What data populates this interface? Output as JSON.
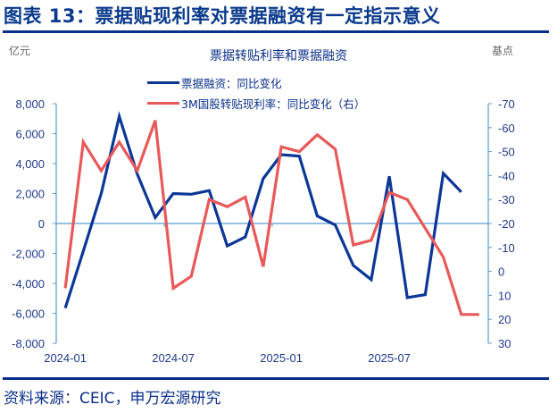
{
  "figure": {
    "title": "图表 13：票据贴现利率对票据融资有一定指示意义",
    "source": "资料来源：CEIC，申万宏源研究"
  },
  "chart": {
    "title": "票据转贴利率和票据融资",
    "left_unit": "亿元",
    "right_unit": "基点",
    "legend": [
      {
        "label": "票据融资：同比变化",
        "color": "#0b3797"
      },
      {
        "label": "3M国股转贴现利率：同比变化（右）",
        "color": "#e8595a"
      }
    ],
    "left_ticks": [
      "8,000",
      "6,000",
      "4,000",
      "2,000",
      "0",
      "-2,000",
      "-4,000",
      "-6,000",
      "-8,000"
    ],
    "right_ticks": [
      "-70",
      "-60",
      "-50",
      "-40",
      "-30",
      "-20",
      "-10",
      "0",
      "10",
      "20",
      "30"
    ],
    "x_labels": [
      "2024-01",
      "2024-07",
      "2025-01",
      "2025-07"
    ]
  },
  "chart_data": {
    "type": "line",
    "title": "票据转贴利率和票据融资",
    "xlabel": "",
    "ylabel": "亿元",
    "ylabel_right": "基点",
    "ylim": [
      -8000,
      8000
    ],
    "ylim_right": [
      30,
      -70
    ],
    "right_axis_inverted": true,
    "legend_position": "top-center",
    "grid": false,
    "x": [
      "2024-01",
      "2024-02",
      "2024-03",
      "2024-04",
      "2024-05",
      "2024-06",
      "2024-07",
      "2024-08",
      "2024-09",
      "2024-10",
      "2024-11",
      "2024-12",
      "2025-01",
      "2025-02",
      "2025-03",
      "2025-04",
      "2025-05",
      "2025-06",
      "2025-07",
      "2025-08",
      "2025-09",
      "2025-10",
      "2025-11",
      "2025-12"
    ],
    "x_tick_labels": [
      "2024-01",
      "2024-07",
      "2025-01",
      "2025-07"
    ],
    "series": [
      {
        "name": "票据融资：同比变化",
        "axis": "left",
        "color": "#0b3797",
        "values": [
          -5650,
          -1850,
          2000,
          7150,
          3300,
          400,
          2000,
          1950,
          2200,
          -1500,
          -900,
          3000,
          4600,
          4500,
          500,
          -100,
          -2800,
          -3750,
          3150,
          -4950,
          -4750,
          3350,
          2100,
          null
        ]
      },
      {
        "name": "3M国股转贴现利率：同比变化（右）",
        "axis": "right",
        "color": "#e8595a",
        "values": [
          7,
          -54,
          -42,
          -54,
          -42,
          -63,
          7,
          2,
          -30,
          -27,
          -31,
          -2,
          -52,
          -50,
          -57,
          -51,
          -11,
          -13,
          -33,
          -30,
          -18,
          -6,
          18,
          18
        ]
      }
    ]
  }
}
